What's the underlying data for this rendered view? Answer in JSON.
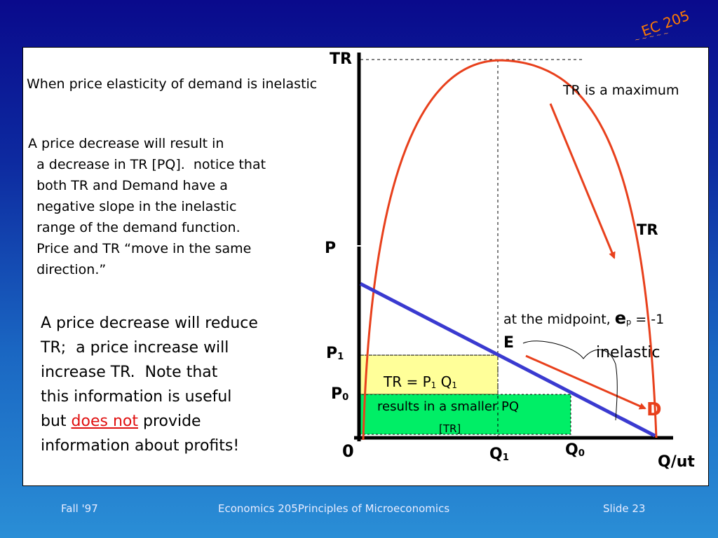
{
  "logo": {
    "text": "EC 205"
  },
  "body_text": {
    "intro": "When price elasticity of demand is inelastic",
    "para1": "A price decrease will result in\n  a decrease in TR [PQ].  notice that\n  both TR and Demand have a\n  negative slope in the inelastic\n  range of the demand function.\n  Price and TR “move in the same\n  direction.”",
    "para2_before": "A price decrease will reduce\nTR;  a price increase will\nincrease TR.  Note that\nthis information is useful\nbut ",
    "para2_link": "does not",
    "para2_after": " provide\ninformation about profits!"
  },
  "chart_data": {
    "type": "diagram",
    "axis_labels": {
      "tr_axis": "TR",
      "price_axis": "P",
      "quantity_axis": "Q/ut",
      "origin": "0"
    },
    "price_labels": {
      "p1": "P",
      "p1_sub": "1",
      "p0": "P",
      "p0_sub": "0"
    },
    "quantity_labels": {
      "q1": "Q",
      "q1_sub": "1",
      "q0": "Q",
      "q0_sub": "0"
    },
    "curve_labels": {
      "tr": "TR",
      "demand": "D",
      "midpoint": "E"
    },
    "annotations": {
      "tr_max": "TR is a maximum",
      "midpoint_prefix": "at the midpoint, ",
      "midpoint_symbol": "e",
      "midpoint_sub": "p",
      "midpoint_value": " = -1",
      "inelastic": "inelastic",
      "tr_rect": "TR = P",
      "tr_rect_sub1": "1",
      "tr_rect_q": " Q",
      "tr_rect_sub2": "1",
      "smaller_pq": "results in a smaller PQ",
      "tr_bracket": "[TR]"
    },
    "colors": {
      "tr_curve": "#e8401c",
      "demand_curve": "#3a3ad0",
      "tr_rect_fill": "#ffff99",
      "green_rect_fill": "#00ee66",
      "arrow": "#e8401c",
      "d_label": "#e8401c"
    }
  },
  "footer": {
    "left": "Fall '97",
    "center": "Economics 205Principles of Microeconomics",
    "right": "Slide 23"
  }
}
